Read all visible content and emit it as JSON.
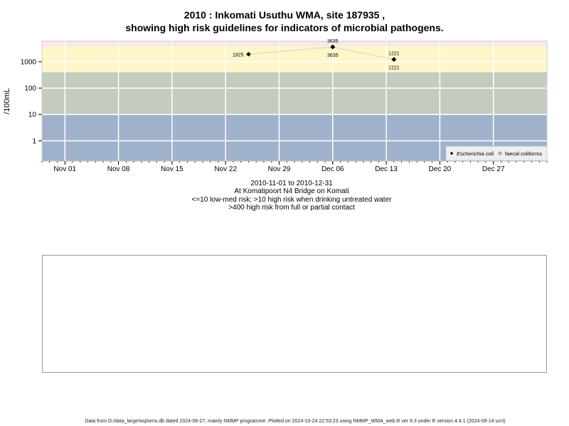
{
  "chart_data": {
    "type": "scatter",
    "title": "2010 : Inkomati Usuthu WMA, site 187935 ,",
    "title_line2": "showing high risk guidelines for indicators of microbial pathogens.",
    "ylabel": "/100mL",
    "y_scale": "log",
    "y_ticks": [
      1,
      10,
      100,
      1000
    ],
    "y_tick_labels": [
      "1",
      "10",
      "100",
      "1000"
    ],
    "x_tick_labels": [
      "Nov 01",
      "Nov 08",
      "Nov 15",
      "Nov 22",
      "Nov 29",
      "Dec 06",
      "Dec 13",
      "Dec 20",
      "Dec 27"
    ],
    "x_ticks": [
      "2010-11-01",
      "2010-11-08",
      "2010-11-15",
      "2010-11-22",
      "2010-11-29",
      "2010-12-06",
      "2010-12-13",
      "2010-12-20",
      "2010-12-27"
    ],
    "xlim": [
      "2010-10-29",
      "2011-01-03"
    ],
    "ylim": [
      0.17,
      6000
    ],
    "grid": true,
    "risk_bands": [
      {
        "from": 0.17,
        "to": 10,
        "color": "#a0b2cb"
      },
      {
        "from": 10,
        "to": 400,
        "color": "#c4ccc0"
      },
      {
        "from": 400,
        "to": 4000,
        "color": "#fdf6c8"
      },
      {
        "from": 4000,
        "to": 6000,
        "color": "#fbe6ec"
      }
    ],
    "series": [
      {
        "name": "Escherichia coli",
        "marker": "filled-diamond",
        "color": "#000000",
        "points": [
          {
            "x": "2010-11-25",
            "y": 1925,
            "label": "1925"
          },
          {
            "x": "2010-12-06",
            "y": 3635,
            "label": "3635"
          },
          {
            "x": "2010-12-14",
            "y": 1221,
            "label": "1221"
          }
        ]
      },
      {
        "name": "faecal coliforms",
        "marker": "open-diamond",
        "color": "#000000",
        "points": [
          {
            "x": "2010-12-06",
            "y": 3635,
            "label": "3635"
          },
          {
            "x": "2010-12-14",
            "y": 1221,
            "label": "1221"
          }
        ]
      }
    ],
    "legend_position": "bottom-right",
    "legend_entries": [
      "Escherichia coli",
      "faecal coliforms"
    ]
  },
  "subtitle_lines": [
    "2010-11-01 to 2010-12-31",
    "At Komatipoort N4 Bridge on Komati",
    "<=10 low-med risk; >10 high risk when drinking untreated water",
    ">400 high risk from full or partial contact"
  ],
  "footer": "Data from D:/data_large/wq/wms.db dated 2024-08-27, mainly NMMP programme. Plotted on 2024-10-24 22:53:23 using NMMP_WMA_web.R ver 9.3 under R version 4.4.1 (2024-06-14 ucrt)"
}
